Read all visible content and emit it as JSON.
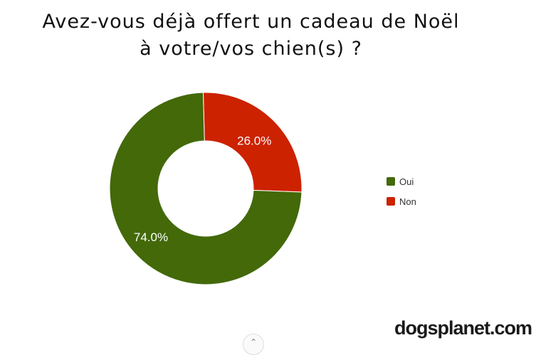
{
  "chart_data": {
    "type": "pie",
    "variant": "donut",
    "title_lines": [
      "Avez-vous déjà offert un cadeau de Noël",
      "à votre/vos chien(s) ?"
    ],
    "slices": [
      {
        "label": "Oui",
        "value": 74.0,
        "display": "74.0%",
        "color": "#436909"
      },
      {
        "label": "Non",
        "value": 26.0,
        "display": "26.0%",
        "color": "#cc2200"
      }
    ],
    "legend_position": "right"
  },
  "brand": "dogsplanet.com",
  "icons": {
    "scroll": "chevron-up-icon"
  }
}
